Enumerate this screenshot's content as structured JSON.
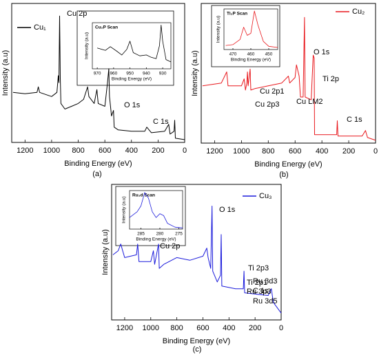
{
  "chart_data": [
    {
      "type": "line",
      "caption": "(a)",
      "xlabel": "Binding Energy (eV)",
      "ylabel": "Intensity (a.u)",
      "xlim": [
        1300,
        0
      ],
      "xticks": [
        1200,
        1000,
        800,
        600,
        400,
        200,
        0
      ],
      "ylim": [
        0,
        100
      ],
      "legend": "upper left",
      "x": [
        1290,
        1200,
        1110,
        1100,
        1090,
        1000,
        960,
        950,
        945,
        940,
        935,
        930,
        900,
        850,
        800,
        760,
        730,
        720,
        680,
        660,
        650,
        600,
        580,
        570,
        565,
        550,
        535,
        530,
        500,
        400,
        300,
        285,
        250,
        150,
        120,
        110,
        80,
        75,
        70,
        0
      ],
      "series": [
        {
          "name": "Cu₁",
          "color": "#000000",
          "values": [
            36,
            35,
            36,
            40,
            36,
            33,
            36,
            48,
            43,
            91,
            46,
            28,
            24,
            26,
            28,
            31,
            40,
            33,
            28,
            38,
            28,
            26,
            43,
            53,
            33,
            19,
            23,
            11,
            9,
            8,
            8,
            11,
            7,
            8,
            13,
            6,
            8,
            16,
            3,
            2
          ]
        }
      ],
      "annotations": [
        "Cu 2p",
        "O 1s",
        "C 1s"
      ]
    },
    {
      "type": "line",
      "caption": "(b)",
      "xlabel": "Binding Energy (eV)",
      "ylabel": "Intensity (a.u)",
      "xlim": [
        1300,
        0
      ],
      "xticks": [
        1200,
        1000,
        800,
        600,
        400,
        200,
        0
      ],
      "ylim": [
        0,
        100
      ],
      "legend": "upper right",
      "x": [
        1290,
        1150,
        1110,
        1100,
        1000,
        980,
        970,
        960,
        955,
        950,
        935,
        930,
        900,
        800,
        700,
        650,
        640,
        600,
        590,
        570,
        560,
        540,
        530,
        525,
        480,
        465,
        458,
        455,
        400,
        290,
        285,
        280,
        100,
        75,
        60,
        0
      ],
      "series": [
        {
          "name": "Cu₂",
          "color": "#e8161b",
          "values": [
            41,
            43,
            51,
            41,
            41,
            46,
            38,
            43,
            51,
            41,
            53,
            38,
            39,
            41,
            43,
            48,
            43,
            47,
            56,
            48,
            33,
            33,
            90,
            33,
            31,
            63,
            61,
            6,
            6,
            6,
            16,
            5,
            5,
            9,
            4,
            2
          ]
        }
      ],
      "annotations": [
        "O 1s",
        "Cu 2p1",
        "Cu 2p3",
        "Cu LM2",
        "Ti 2p",
        "C 1s"
      ]
    },
    {
      "type": "line",
      "caption": "(c)",
      "xlabel": "Binding Energy (eV)",
      "ylabel": "Intensity (a.u)",
      "xlim": [
        1300,
        0
      ],
      "xticks": [
        1200,
        1000,
        800,
        600,
        400,
        200,
        0
      ],
      "ylim": [
        0,
        100
      ],
      "legend": "upper right",
      "x": [
        1290,
        1250,
        1230,
        1200,
        1110,
        1100,
        1090,
        1000,
        980,
        970,
        940,
        935,
        900,
        800,
        700,
        600,
        570,
        560,
        540,
        530,
        525,
        490,
        465,
        460,
        455,
        350,
        290,
        285,
        280,
        100,
        75,
        60,
        0
      ],
      "series": [
        {
          "name": "Cu₃",
          "color": "#1a1adb",
          "values": [
            48,
            51,
            56,
            46,
            48,
            56,
            43,
            43,
            51,
            41,
            56,
            38,
            41,
            46,
            44,
            47,
            53,
            46,
            38,
            84,
            36,
            28,
            33,
            63,
            25,
            23,
            23,
            36,
            20,
            18,
            23,
            13,
            5
          ]
        }
      ],
      "annotations": [
        "O 1s",
        "Cu 2p",
        "Ti 2p3",
        "Ti 2p1",
        "Ru 3p3",
        "Ru 3d3",
        "C 1s",
        "Ru 3d5"
      ]
    },
    {
      "type": "line",
      "title": "Cu₂P Scan",
      "xlabel": "Binding Energy (eV)",
      "ylabel": "Intensity (a.u)",
      "xlim": [
        973,
        925
      ],
      "xticks": [
        970,
        960,
        950,
        940,
        930
      ],
      "ylim": [
        0,
        100
      ],
      "x": [
        970,
        965,
        962,
        958,
        955,
        952,
        950,
        948,
        944,
        940,
        937,
        934,
        932,
        931,
        930,
        928,
        925
      ],
      "series": [
        {
          "color": "#000000",
          "values": [
            45,
            40,
            48,
            38,
            30,
            42,
            60,
            35,
            28,
            30,
            25,
            22,
            50,
            95,
            60,
            20,
            15
          ]
        }
      ]
    },
    {
      "type": "line",
      "title": "Ti₂P Scan",
      "xlabel": "Binding Energy (eV)",
      "ylabel": "Intensity (a.u)",
      "xlim": [
        475,
        445
      ],
      "xticks": [
        470,
        460,
        450
      ],
      "ylim": [
        0,
        100
      ],
      "x": [
        474,
        470,
        466,
        464,
        462,
        460,
        458,
        456,
        453,
        450,
        445
      ],
      "series": [
        {
          "color": "#e8161b",
          "values": [
            10,
            12,
            25,
            55,
            35,
            40,
            95,
            60,
            20,
            8,
            5
          ]
        }
      ]
    },
    {
      "type": "line",
      "title": "Ru₃d Scan",
      "xlabel": "Binding Energy (eV)",
      "ylabel": "Intensity (a.u)",
      "xlim": [
        288,
        274
      ],
      "xticks": [
        285,
        280,
        275
      ],
      "ylim": [
        0,
        100
      ],
      "x": [
        288,
        286,
        285,
        284,
        283,
        282,
        281,
        280,
        279,
        278,
        276,
        274
      ],
      "series": [
        {
          "color": "#1a1adb",
          "values": [
            30,
            45,
            60,
            95,
            80,
            45,
            30,
            40,
            35,
            15,
            5,
            3
          ]
        }
      ]
    }
  ]
}
